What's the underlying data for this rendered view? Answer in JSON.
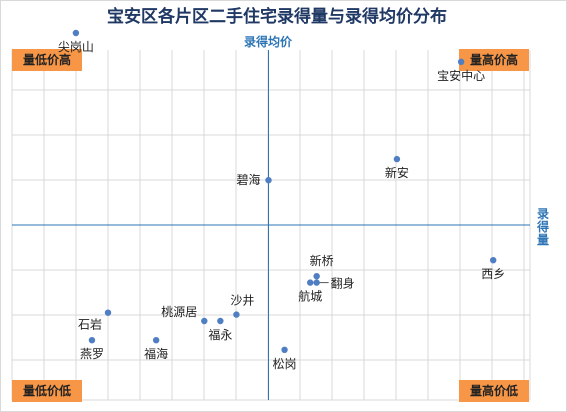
{
  "chart_data": {
    "type": "scatter",
    "title": "宝安区各片区二手住宅录得量与录得均价分布",
    "x_axis_label": "录得量",
    "y_axis_label": "录得均价",
    "quadrant_labels": {
      "top_left": "量低价高",
      "top_right": "量高价高",
      "bottom_left": "量低价低",
      "bottom_right": "量高价低"
    },
    "grid": true,
    "colors": {
      "point": "#4f7ec2",
      "axis": "#2e75b6",
      "badge": "#f79646",
      "title": "#1f3864"
    },
    "points": [
      {
        "label": "尖岗山",
        "x": -3.0,
        "y": 3.0
      },
      {
        "label": "宝安中心",
        "x": 3.0,
        "y": 2.55
      },
      {
        "label": "新安",
        "x": 2.0,
        "y": 1.03
      },
      {
        "label": "碧海",
        "x": 0.0,
        "y": 0.7
      },
      {
        "label": "西乡",
        "x": 3.5,
        "y": -0.55
      },
      {
        "label": "新桥",
        "x": 0.75,
        "y": -0.8
      },
      {
        "label": "翻身",
        "x": 0.75,
        "y": -0.9
      },
      {
        "label": "航城",
        "x": 0.65,
        "y": -0.9
      },
      {
        "label": "沙井",
        "x": -0.5,
        "y": -1.4
      },
      {
        "label": "桃源居",
        "x": -1.0,
        "y": -1.5
      },
      {
        "label": "福永",
        "x": -0.75,
        "y": -1.5
      },
      {
        "label": "石岩",
        "x": -2.5,
        "y": -1.37
      },
      {
        "label": "燕罗",
        "x": -2.75,
        "y": -1.8
      },
      {
        "label": "福海",
        "x": -1.75,
        "y": -1.8
      },
      {
        "label": "松岗",
        "x": 0.25,
        "y": -1.95
      }
    ]
  }
}
